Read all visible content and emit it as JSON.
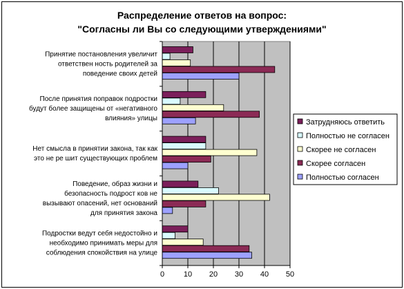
{
  "chart_data": {
    "type": "bar",
    "orientation": "horizontal",
    "title_lines": [
      "Распределение ответов на вопрос:",
      "\"Согласны ли Вы со следующими утверждениями\""
    ],
    "categories": [
      [
        "Принятие постановления увеличит",
        "ответствен ность родителей за",
        "поведение своих детей"
      ],
      [
        "После принятия поправок подростки",
        "будут более защищены от «негативного",
        "влияния» улицы"
      ],
      [
        "Нет смысла в принятии закона, так как",
        "это не ре шит существующих проблем"
      ],
      [
        "Поведение, образ жизни и",
        "безопасность подрост ков не",
        "вызывают опасений, нет оснований",
        "для принятия закона"
      ],
      [
        "Подростки ведут себя недостойно и",
        "необходимо принимать меры для",
        "соблюдения спокойствия на улице"
      ]
    ],
    "series": [
      {
        "name": "Затрудняюсь ответить",
        "color": "#7b1f5a",
        "values": [
          12,
          17,
          17,
          14,
          10
        ]
      },
      {
        "name": "Полностью не согласен",
        "color": "#d9fbff",
        "values": [
          3,
          7,
          17,
          22,
          5
        ]
      },
      {
        "name": "Скорее не согласен",
        "color": "#ffffd0",
        "values": [
          11,
          24,
          37,
          42,
          16
        ]
      },
      {
        "name": "Скорее согласен",
        "color": "#8b2a55",
        "values": [
          44,
          38,
          19,
          17,
          34
        ]
      },
      {
        "name": "Полностью согласен",
        "color": "#9da1ff",
        "values": [
          30,
          13,
          10,
          4,
          35
        ]
      }
    ],
    "xlim": [
      0,
      50
    ],
    "xticks": [
      0,
      10,
      20,
      30,
      40,
      50
    ],
    "grid": true,
    "plot_background": "#c0c0c0",
    "legend_position": "right"
  }
}
